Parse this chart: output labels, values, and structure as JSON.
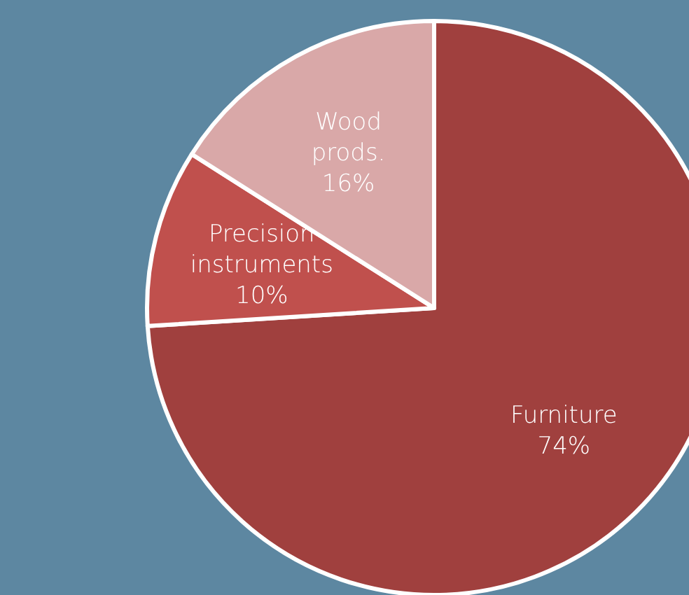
{
  "chart_data": {
    "type": "pie",
    "categories": [
      "Furniture",
      "Precision instruments",
      "Wood prods."
    ],
    "values": [
      74,
      10,
      16
    ],
    "colors": [
      "#a0403e",
      "#c0504d",
      "#d9a8a8"
    ],
    "value_labels": [
      "74%",
      "10%",
      "16%"
    ]
  }
}
